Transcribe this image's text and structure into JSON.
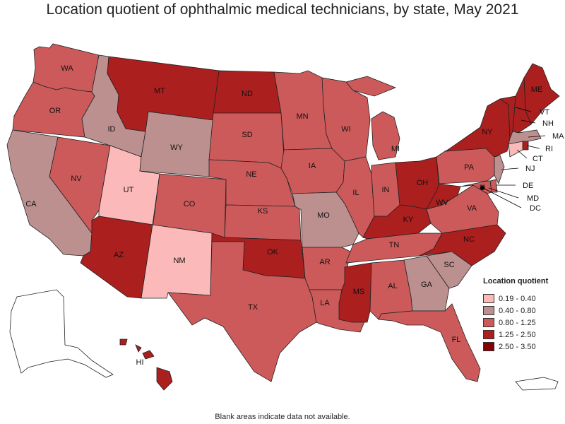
{
  "title": "Location quotient of ophthalmic medical technicians, by state, May 2021",
  "footnote": "Blank areas indicate data not available.",
  "legend": {
    "title": "Location quotient",
    "items": [
      {
        "label": "0.19 - 0.40",
        "color": "#fcb9b9"
      },
      {
        "label": "0.40 - 0.80",
        "color": "#bd9090"
      },
      {
        "label": "0.80 - 1.25",
        "color": "#cd5a5a"
      },
      {
        "label": "1.25 - 2.50",
        "color": "#ab1f1f"
      },
      {
        "label": "2.50 - 3.50",
        "color": "#830000"
      }
    ]
  },
  "states": [
    {
      "abbr": "WA",
      "class": "0.80 - 1.25"
    },
    {
      "abbr": "OR",
      "class": "0.80 - 1.25"
    },
    {
      "abbr": "CA",
      "class": "0.40 - 0.80"
    },
    {
      "abbr": "NV",
      "class": "0.80 - 1.25"
    },
    {
      "abbr": "ID",
      "class": "0.40 - 0.80"
    },
    {
      "abbr": "UT",
      "class": "0.19 - 0.40"
    },
    {
      "abbr": "AZ",
      "class": "1.25 - 2.50"
    },
    {
      "abbr": "MT",
      "class": "1.25 - 2.50"
    },
    {
      "abbr": "WY",
      "class": "0.40 - 0.80"
    },
    {
      "abbr": "CO",
      "class": "0.80 - 1.25"
    },
    {
      "abbr": "NM",
      "class": "0.19 - 0.40"
    },
    {
      "abbr": "ND",
      "class": "1.25 - 2.50"
    },
    {
      "abbr": "SD",
      "class": "0.80 - 1.25"
    },
    {
      "abbr": "NE",
      "class": "0.80 - 1.25"
    },
    {
      "abbr": "KS",
      "class": "0.80 - 1.25"
    },
    {
      "abbr": "OK",
      "class": "1.25 - 2.50"
    },
    {
      "abbr": "TX",
      "class": "0.80 - 1.25"
    },
    {
      "abbr": "MN",
      "class": "0.80 - 1.25"
    },
    {
      "abbr": "IA",
      "class": "0.80 - 1.25"
    },
    {
      "abbr": "MO",
      "class": "0.40 - 0.80"
    },
    {
      "abbr": "AR",
      "class": "0.80 - 1.25"
    },
    {
      "abbr": "LA",
      "class": "0.80 - 1.25"
    },
    {
      "abbr": "WI",
      "class": "0.80 - 1.25"
    },
    {
      "abbr": "IL",
      "class": "0.80 - 1.25"
    },
    {
      "abbr": "MI",
      "class": "0.80 - 1.25"
    },
    {
      "abbr": "IN",
      "class": "0.80 - 1.25"
    },
    {
      "abbr": "OH",
      "class": "1.25 - 2.50"
    },
    {
      "abbr": "KY",
      "class": "1.25 - 2.50"
    },
    {
      "abbr": "TN",
      "class": "0.80 - 1.25"
    },
    {
      "abbr": "MS",
      "class": "1.25 - 2.50"
    },
    {
      "abbr": "AL",
      "class": "0.80 - 1.25"
    },
    {
      "abbr": "GA",
      "class": "0.40 - 0.80"
    },
    {
      "abbr": "FL",
      "class": "0.80 - 1.25"
    },
    {
      "abbr": "SC",
      "class": "0.40 - 0.80"
    },
    {
      "abbr": "NC",
      "class": "1.25 - 2.50"
    },
    {
      "abbr": "VA",
      "class": "0.80 - 1.25"
    },
    {
      "abbr": "WV",
      "class": "1.25 - 2.50"
    },
    {
      "abbr": "PA",
      "class": "0.80 - 1.25"
    },
    {
      "abbr": "NY",
      "class": "1.25 - 2.50"
    },
    {
      "abbr": "ME",
      "class": "1.25 - 2.50"
    },
    {
      "abbr": "VT",
      "class": "1.25 - 2.50"
    },
    {
      "abbr": "NH",
      "class": "1.25 - 2.50"
    },
    {
      "abbr": "MA",
      "class": "0.40 - 0.80"
    },
    {
      "abbr": "RI",
      "class": "1.25 - 2.50"
    },
    {
      "abbr": "CT",
      "class": "0.19 - 0.40"
    },
    {
      "abbr": "NJ",
      "class": "0.40 - 0.80"
    },
    {
      "abbr": "DE",
      "class": "0.80 - 1.25"
    },
    {
      "abbr": "MD",
      "class": "0.80 - 1.25"
    },
    {
      "abbr": "DC",
      "class": "1.25 - 2.50"
    },
    {
      "abbr": "HI",
      "class": "1.25 - 2.50"
    },
    {
      "abbr": "AK",
      "class": ""
    },
    {
      "abbr": "PR",
      "class": ""
    }
  ]
}
